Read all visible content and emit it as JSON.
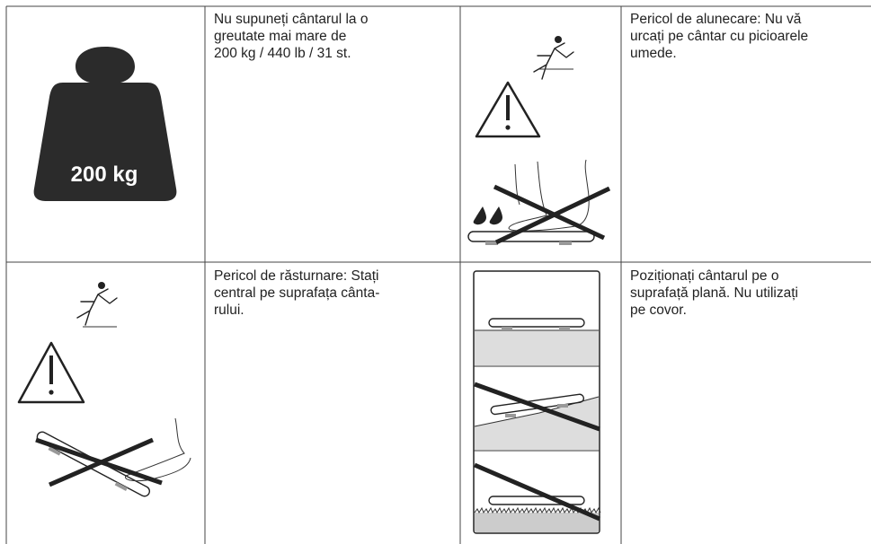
{
  "instructions": [
    {
      "icon_label": "200 kg",
      "text": [
        "Nu supuneți cântarul la o",
        "greutate mai mare de",
        "200 kg / 440 lb / 31 st."
      ]
    },
    {
      "text": [
        "Pericol de alunecare: Nu vă",
        "urcați pe cântar cu picioarele",
        "umede."
      ]
    },
    {
      "text": [
        "Pericol de răsturnare: Stați",
        "central pe suprafața cânta-",
        "rului."
      ]
    },
    {
      "text": [
        "Poziționați cântarul pe o",
        "suprafață plană. Nu utilizați",
        "pe covor."
      ]
    }
  ]
}
